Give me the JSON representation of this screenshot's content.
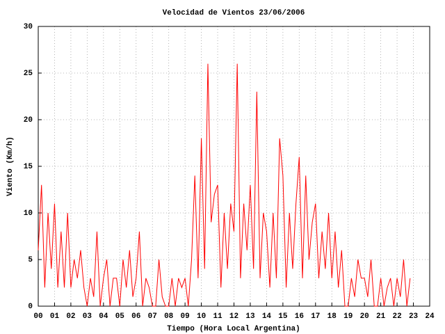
{
  "chart_data": {
    "type": "line",
    "title": "Velocidad de Vientos 23/06/2006",
    "x_label": "Tiempo (Hora Local Argentina)",
    "y_label": "Viento (Km/h)",
    "xlim": [
      0,
      24
    ],
    "ylim": [
      0,
      30
    ],
    "xticks": [
      {
        "value": 0,
        "label": "00"
      },
      {
        "value": 1,
        "label": "01"
      },
      {
        "value": 2,
        "label": "02"
      },
      {
        "value": 3,
        "label": "03"
      },
      {
        "value": 4,
        "label": "04"
      },
      {
        "value": 5,
        "label": "05"
      },
      {
        "value": 6,
        "label": "06"
      },
      {
        "value": 7,
        "label": "07"
      },
      {
        "value": 8,
        "label": "08"
      },
      {
        "value": 9,
        "label": "09"
      },
      10,
      11,
      12,
      13,
      14,
      15,
      16,
      17,
      18,
      19,
      20,
      21,
      22,
      23,
      24
    ],
    "yticks": [
      0,
      5,
      10,
      15,
      20,
      25,
      30
    ],
    "grid": true,
    "series": [
      {
        "color": "#ff0000",
        "x": [
          0,
          0.2,
          0.4,
          0.6,
          0.8,
          1,
          1.2,
          1.4,
          1.6,
          1.8,
          2,
          2.2,
          2.4,
          2.6,
          2.8,
          3,
          3.2,
          3.4,
          3.6,
          3.8,
          4,
          4.2,
          4.4,
          4.6,
          4.8,
          5,
          5.2,
          5.4,
          5.6,
          5.8,
          6,
          6.2,
          6.4,
          6.6,
          6.8,
          7,
          7.2,
          7.4,
          7.6,
          7.8,
          8,
          8.2,
          8.4,
          8.6,
          8.8,
          9,
          9.2,
          9.4,
          9.6,
          9.8,
          10,
          10.2,
          10.4,
          10.6,
          10.8,
          11,
          11.2,
          11.4,
          11.6,
          11.8,
          12,
          12.2,
          12.4,
          12.6,
          12.8,
          13,
          13.2,
          13.4,
          13.6,
          13.8,
          14,
          14.2,
          14.4,
          14.6,
          14.8,
          15,
          15.2,
          15.4,
          15.6,
          15.8,
          16,
          16.2,
          16.4,
          16.6,
          16.8,
          17,
          17.2,
          17.4,
          17.6,
          17.8,
          18,
          18.2,
          18.4,
          18.6,
          18.8,
          19,
          19.2,
          19.4,
          19.6,
          19.8,
          20,
          20.2,
          20.4,
          20.6,
          20.8,
          21,
          21.2,
          21.4,
          21.6,
          21.8,
          22,
          22.2,
          22.4,
          22.6,
          22.8
        ],
        "values": [
          6,
          13,
          2,
          10,
          4,
          11,
          2,
          8,
          2,
          10,
          2,
          5,
          3,
          6,
          2,
          0,
          3,
          1,
          8,
          0,
          3,
          5,
          0,
          3,
          3,
          0,
          5,
          2,
          6,
          1,
          3,
          8,
          0,
          3,
          2,
          0,
          0,
          5,
          1,
          0,
          0,
          3,
          0,
          3,
          2,
          3,
          0,
          5,
          14,
          3,
          18,
          4,
          26,
          9,
          12,
          13,
          2,
          10,
          4,
          11,
          8,
          26,
          3,
          11,
          6,
          13,
          4,
          23,
          3,
          10,
          8,
          2,
          10,
          3,
          18,
          14,
          2,
          10,
          4,
          11,
          16,
          3,
          14,
          5,
          9,
          11,
          3,
          8,
          4,
          10,
          3,
          8,
          2,
          6,
          0,
          0,
          3,
          1,
          5,
          3,
          3,
          1,
          5,
          0,
          0,
          3,
          0,
          2,
          3,
          0,
          3,
          1,
          5,
          0,
          3
        ]
      }
    ]
  }
}
